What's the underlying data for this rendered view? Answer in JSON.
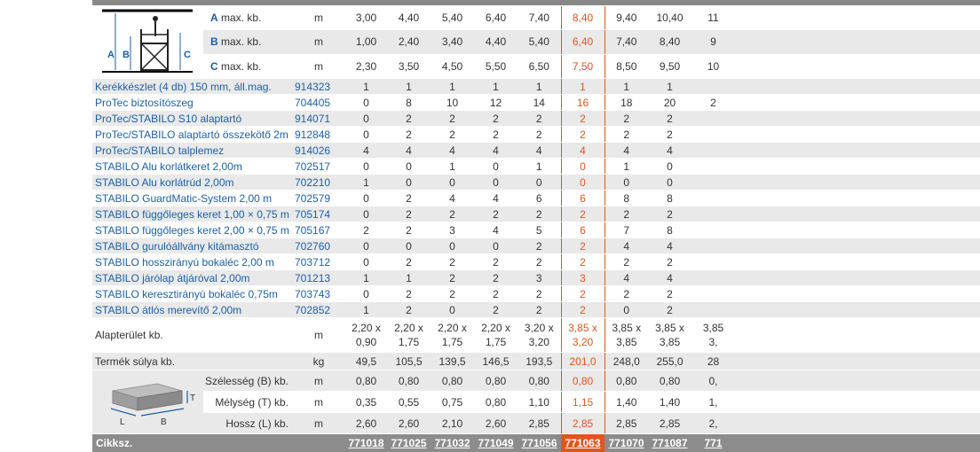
{
  "columns": [
    "771018",
    "771025",
    "771032",
    "771049",
    "771056",
    "771063",
    "771070",
    "771087",
    "771"
  ],
  "heights": [
    {
      "letter": "A",
      "label": " max. kb.",
      "unit": "m",
      "values": [
        "3,00",
        "4,40",
        "5,40",
        "6,40",
        "7,40",
        "8,40",
        "9,40",
        "10,40",
        "11"
      ]
    },
    {
      "letter": "B",
      "label": " max. kb.",
      "unit": "m",
      "values": [
        "1,00",
        "2,40",
        "3,40",
        "4,40",
        "5,40",
        "6,40",
        "7,40",
        "8,40",
        "9"
      ]
    },
    {
      "letter": "C",
      "label": " max. kb.",
      "unit": "m",
      "values": [
        "2,30",
        "3,50",
        "4,50",
        "5,50",
        "6,50",
        "7,50",
        "8,50",
        "9,50",
        "10"
      ]
    }
  ],
  "parts": [
    {
      "name": "Kerékkészlet (4 db) 150 mm, áll.mag.",
      "code": "914323",
      "values": [
        "1",
        "1",
        "1",
        "1",
        "1",
        "1",
        "1",
        "1",
        ""
      ]
    },
    {
      "name": "ProTec biztosítószeg",
      "code": "704405",
      "values": [
        "0",
        "8",
        "10",
        "12",
        "14",
        "16",
        "18",
        "20",
        "2"
      ]
    },
    {
      "name": "ProTec/STABILO S10 alaptartó",
      "code": "914071",
      "values": [
        "0",
        "2",
        "2",
        "2",
        "2",
        "2",
        "2",
        "2",
        ""
      ]
    },
    {
      "name": "ProTec/STABILO alaptartó összekötő 2m",
      "code": "912848",
      "values": [
        "0",
        "2",
        "2",
        "2",
        "2",
        "2",
        "2",
        "2",
        ""
      ]
    },
    {
      "name": "ProTec/STABILO talplemez",
      "code": "914026",
      "values": [
        "4",
        "4",
        "4",
        "4",
        "4",
        "4",
        "4",
        "4",
        ""
      ]
    },
    {
      "name": "STABILO Alu korlátkeret 2,00m",
      "code": "702517",
      "values": [
        "0",
        "0",
        "1",
        "0",
        "1",
        "0",
        "1",
        "0",
        ""
      ]
    },
    {
      "name": "STABILO Alu korlátrúd 2,00m",
      "code": "702210",
      "values": [
        "1",
        "0",
        "0",
        "0",
        "0",
        "0",
        "0",
        "0",
        ""
      ]
    },
    {
      "name": "STABILO GuardMatic-System 2,00 m",
      "code": "702579",
      "values": [
        "0",
        "2",
        "4",
        "4",
        "6",
        "6",
        "8",
        "8",
        ""
      ]
    },
    {
      "name": "STABILO függőleges keret 1,00 × 0,75 m",
      "code": "705174",
      "values": [
        "0",
        "2",
        "2",
        "2",
        "2",
        "2",
        "2",
        "2",
        ""
      ]
    },
    {
      "name": "STABILO függőleges keret 2,00 × 0,75 m",
      "code": "705167",
      "values": [
        "2",
        "2",
        "3",
        "4",
        "5",
        "6",
        "7",
        "8",
        ""
      ]
    },
    {
      "name": "STABILO gurulóállvány kitámasztó",
      "code": "702760",
      "values": [
        "0",
        "0",
        "0",
        "0",
        "2",
        "2",
        "4",
        "4",
        ""
      ]
    },
    {
      "name": "STABILO hosszirányú bokaléc 2,00 m",
      "code": "703712",
      "values": [
        "0",
        "2",
        "2",
        "2",
        "2",
        "2",
        "2",
        "2",
        ""
      ]
    },
    {
      "name": "STABILO járólap átjáróval 2,00m",
      "code": "701213",
      "values": [
        "1",
        "1",
        "2",
        "2",
        "3",
        "3",
        "4",
        "4",
        ""
      ]
    },
    {
      "name": "STABILO keresztirányú bokaléc 0,75m",
      "code": "703743",
      "values": [
        "0",
        "2",
        "2",
        "2",
        "2",
        "2",
        "2",
        "2",
        ""
      ]
    },
    {
      "name": "STABILO átlós merevítő 2,00m",
      "code": "702852",
      "values": [
        "1",
        "2",
        "0",
        "2",
        "2",
        "2",
        "0",
        "2",
        ""
      ]
    }
  ],
  "area": {
    "label": "Alapterület kb.",
    "unit": "m",
    "line1": [
      "2,20 x",
      "2,20 x",
      "2,20 x",
      "2,20 x",
      "3,20 x",
      "3,85 x",
      "3,85 x",
      "3,85 x",
      "3,85"
    ],
    "line2": [
      "0,90",
      "1,75",
      "1,75",
      "1,75",
      "3,20",
      "3,20",
      "3,85",
      "3,85",
      "3,"
    ]
  },
  "weight": {
    "label": "Termék súlya kb.",
    "unit": "kg",
    "values": [
      "49,5",
      "105,5",
      "139,5",
      "146,5",
      "193,5",
      "201,0",
      "248,0",
      "255,0",
      "28"
    ]
  },
  "dims": [
    {
      "label": "Szélesség (B) kb.",
      "unit": "m",
      "values": [
        "0,80",
        "0,80",
        "0,80",
        "0,80",
        "0,80",
        "0,80",
        "0,80",
        "0,80",
        "0,"
      ]
    },
    {
      "label": "Mélység (T) kb.",
      "unit": "m",
      "values": [
        "0,35",
        "0,55",
        "0,75",
        "0,80",
        "1,10",
        "1,15",
        "1,40",
        "1,40",
        "1,"
      ]
    },
    {
      "label": "Hossz (L) kb.",
      "unit": "m",
      "values": [
        "2,60",
        "2,60",
        "2,10",
        "2,60",
        "2,85",
        "2,85",
        "2,85",
        "2,85",
        "2,"
      ]
    }
  ],
  "diagram_labels": {
    "a": "A",
    "b": "B",
    "c": "C",
    "t": "T",
    "l": "L",
    "bb": "B"
  },
  "footer_label": "Cikksz.",
  "colors": {
    "accent": "#e0561c",
    "link": "#1d5fa3",
    "stripe": "#e9e9e9",
    "footer": "#8c8c8c"
  }
}
